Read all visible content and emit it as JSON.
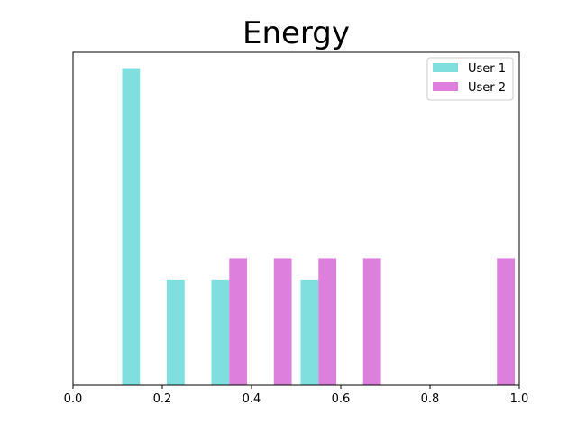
{
  "chart_data": {
    "type": "bar",
    "subtype": "histogram",
    "title": "Energy",
    "xlabel": "",
    "ylabel": "",
    "xlim": [
      0.0,
      1.0
    ],
    "ylim": [
      0,
      3.15
    ],
    "y_ticks_visible": false,
    "x_ticks": [
      "0.0",
      "0.2",
      "0.4",
      "0.6",
      "0.8",
      "1.0"
    ],
    "grid": false,
    "legend_position": "top-right",
    "series": [
      {
        "name": "User 1",
        "color": "#7fdfdf",
        "bars": [
          {
            "x_start": 0.11,
            "x_end": 0.15,
            "count": 3
          },
          {
            "x_start": 0.21,
            "x_end": 0.25,
            "count": 1
          },
          {
            "x_start": 0.31,
            "x_end": 0.35,
            "count": 1
          },
          {
            "x_start": 0.51,
            "x_end": 0.55,
            "count": 1
          }
        ]
      },
      {
        "name": "User 2",
        "color": "#dd7fdd",
        "bars": [
          {
            "x_start": 0.35,
            "x_end": 0.39,
            "count": 1.2
          },
          {
            "x_start": 0.45,
            "x_end": 0.49,
            "count": 1.2
          },
          {
            "x_start": 0.55,
            "x_end": 0.59,
            "count": 1.2
          },
          {
            "x_start": 0.65,
            "x_end": 0.69,
            "count": 1.2
          },
          {
            "x_start": 0.95,
            "x_end": 0.99,
            "count": 1.2
          }
        ]
      }
    ]
  }
}
